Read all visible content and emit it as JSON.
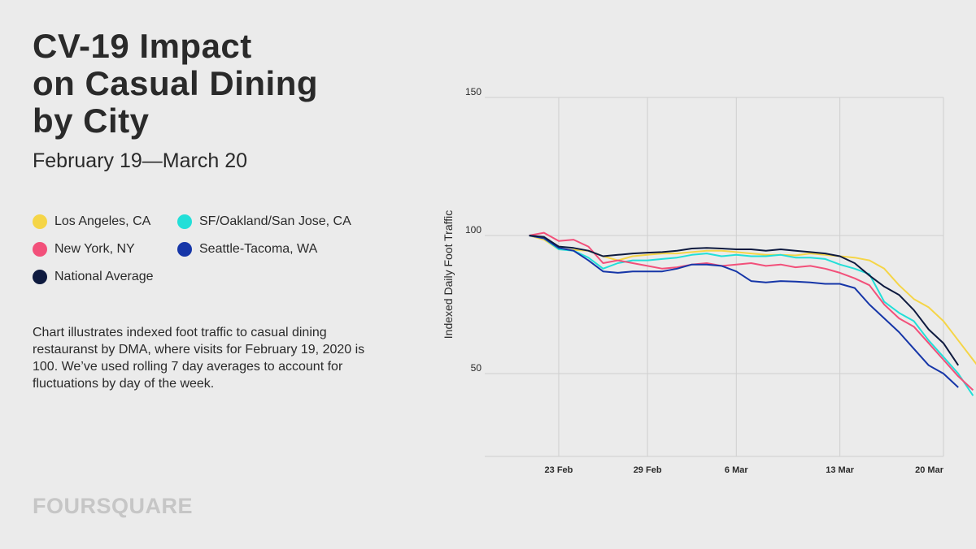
{
  "title_lines": [
    "CV-19 Impact",
    "on Casual Dining",
    "by City"
  ],
  "subtitle": "February 19—March 20",
  "legend": [
    {
      "label": "Los Angeles, CA",
      "color": "#f5d547"
    },
    {
      "label": "SF/Oakland/San Jose, CA",
      "color": "#22dfd8"
    },
    {
      "label": "New York, NY",
      "color": "#f2507a"
    },
    {
      "label": "Seattle-Tacoma, WA",
      "color": "#1636a8"
    },
    {
      "label": "National Average",
      "color": "#0e1a3f"
    }
  ],
  "description": "Chart illustrates indexed foot traffic to casual dining restauranst by DMA, where visits for February 19, 2020 is 100. We’ve used rolling 7 day averages to account for fluctuations by day of the week.",
  "brand": "FOURSQUARE",
  "chart_data": {
    "type": "line",
    "title": "",
    "xlabel": "",
    "ylabel": "Indexed Daily Foot Traffic",
    "ylim": [
      20,
      150
    ],
    "yticks": [
      50,
      100,
      150
    ],
    "xticks": [
      {
        "label": "23 Feb",
        "day": 4
      },
      {
        "label": "29 Feb",
        "day": 10
      },
      {
        "label": "6 Mar",
        "day": 16
      },
      {
        "label": "13 Mar",
        "day": 23
      },
      {
        "label": "20 Mar",
        "day": 30
      }
    ],
    "x_range_days": [
      -1,
      30
    ],
    "x_start_day": 2,
    "grid": true,
    "series": [
      {
        "name": "Los Angeles, CA",
        "color": "#f5d547",
        "values": [
          100,
          98.5,
          95,
          94.8,
          94.5,
          92.5,
          91,
          92.5,
          93,
          93.5,
          93.5,
          94,
          94.5,
          94.5,
          94,
          93.5,
          93,
          93,
          92.8,
          93.5,
          93,
          92.5,
          92,
          91,
          88,
          82,
          77,
          74,
          69,
          62,
          55,
          48
        ]
      },
      {
        "name": "SF/Oakland/San Jose, CA",
        "color": "#22dfd8",
        "values": [
          100,
          99,
          95,
          94.5,
          92,
          88,
          90,
          91,
          91,
          91.5,
          92,
          93,
          93.5,
          92.5,
          93,
          92.5,
          92.5,
          93,
          92,
          92,
          91.5,
          89.5,
          88,
          86,
          76,
          72,
          69,
          62,
          56,
          50,
          42
        ]
      },
      {
        "name": "New York, NY",
        "color": "#f2507a",
        "values": [
          100,
          101,
          98,
          98.5,
          96,
          90,
          91,
          90,
          89,
          88,
          88.5,
          89.5,
          90,
          89,
          89.5,
          90,
          89,
          89.5,
          88.5,
          89,
          88,
          86.5,
          84.5,
          82,
          75,
          70,
          67,
          61,
          55,
          49,
          44
        ]
      },
      {
        "name": "Seattle-Tacoma, WA",
        "color": "#1636a8",
        "values": [
          100,
          99,
          95.5,
          94.5,
          91,
          87,
          86.5,
          87,
          87,
          87,
          88,
          89.5,
          89.5,
          89,
          87,
          83.5,
          83,
          83.5,
          83.3,
          83,
          82.5,
          82.5,
          81,
          75,
          70,
          65,
          59,
          53,
          50,
          45
        ]
      },
      {
        "name": "National Average",
        "color": "#0e1a3f",
        "values": [
          100,
          99.5,
          96,
          95.5,
          94.5,
          92.5,
          93,
          93.5,
          93.8,
          94,
          94.5,
          95.3,
          95.5,
          95.3,
          95,
          95,
          94.5,
          95,
          94.5,
          94,
          93.5,
          92.5,
          90,
          85.5,
          81.5,
          78.5,
          73,
          66,
          61,
          53
        ]
      }
    ]
  }
}
